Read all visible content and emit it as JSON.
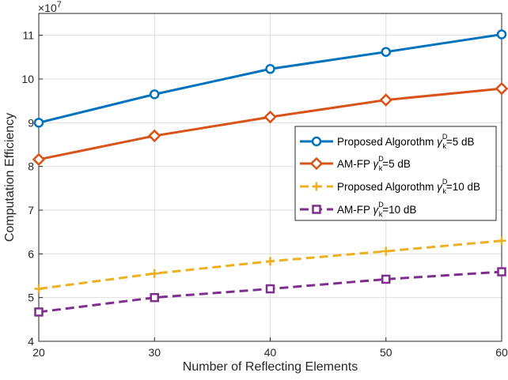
{
  "chart_data": {
    "type": "line",
    "x": [
      20,
      30,
      40,
      50,
      60
    ],
    "xlabel": "Number of Reflecting Elements",
    "ylabel": "Computation Efficiency",
    "xlim": [
      20,
      60
    ],
    "ylim": [
      4,
      11.5
    ],
    "xticks": [
      20,
      30,
      40,
      50,
      60
    ],
    "yticks": [
      4,
      5,
      6,
      7,
      8,
      9,
      10,
      11
    ],
    "exponent_base": "10",
    "exponent_power": "7",
    "grid": true,
    "legend_position": "center-right",
    "series": [
      {
        "name": "Proposed Algorothm γkD=5 dB",
        "legend_main": "Proposed Algorothm ",
        "legend_gamma": "γ",
        "legend_sub": "k",
        "legend_sup": "D",
        "legend_tail": "=5 dB",
        "values": [
          9.0,
          9.65,
          10.23,
          10.62,
          11.02
        ],
        "color": "#0072BD",
        "marker": "circle",
        "dash": "solid"
      },
      {
        "name": "AM-FP γkD=5 dB",
        "legend_main": "AM-FP ",
        "legend_gamma": "γ",
        "legend_sub": "k",
        "legend_sup": "D",
        "legend_tail": "=5 dB",
        "values": [
          8.16,
          8.7,
          9.13,
          9.52,
          9.78
        ],
        "color": "#D95319",
        "marker": "diamond",
        "dash": "solid"
      },
      {
        "name": "Proposed Algorothm γkD=10 dB",
        "legend_main": "Proposed Algorothm ",
        "legend_gamma": "γ",
        "legend_sub": "k",
        "legend_sup": "D",
        "legend_tail": "=10 dB",
        "values": [
          5.2,
          5.55,
          5.83,
          6.06,
          6.3
        ],
        "color": "#EDB120",
        "marker": "plus",
        "dash": "dashed"
      },
      {
        "name": "AM-FP γkD=10 dB",
        "legend_main": "AM-FP ",
        "legend_gamma": "γ",
        "legend_sub": "k",
        "legend_sup": "D",
        "legend_tail": "=10 dB",
        "values": [
          4.67,
          5.0,
          5.2,
          5.42,
          5.59
        ],
        "color": "#7E2F8E",
        "marker": "square",
        "dash": "dashed"
      }
    ]
  }
}
